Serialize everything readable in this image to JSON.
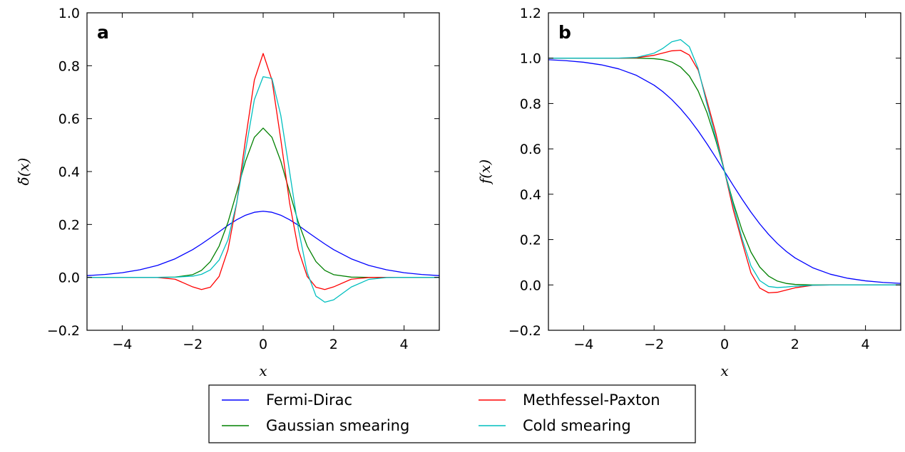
{
  "chart_data": [
    {
      "type": "line",
      "panel_letter": "a",
      "xlabel": "x",
      "ylabel": "δ̃(x)",
      "xlim": [
        -5,
        5
      ],
      "ylim": [
        -0.2,
        1.0
      ],
      "x_ticks": [
        -4,
        -2,
        0,
        2,
        4
      ],
      "y_ticks": [
        -0.2,
        0.0,
        0.2,
        0.4,
        0.6,
        0.8,
        1.0
      ],
      "x_tick_labels": [
        "−4",
        "−2",
        "0",
        "2",
        "4"
      ],
      "y_tick_labels": [
        "−0.2",
        "0.0",
        "0.2",
        "0.4",
        "0.6",
        "0.8",
        "1.0"
      ],
      "x": [
        -5,
        -4.5,
        -4,
        -3.5,
        -3,
        -2.5,
        -2,
        -1.75,
        -1.5,
        -1.25,
        -1,
        -0.75,
        -0.5,
        -0.25,
        0,
        0.25,
        0.5,
        0.75,
        1,
        1.25,
        1.5,
        1.75,
        2,
        2.5,
        3,
        3.5,
        4,
        4.5,
        5
      ],
      "series": [
        {
          "name": "Fermi-Dirac",
          "color": "#0000ff",
          "values": [
            0.0066,
            0.0109,
            0.0177,
            0.0287,
            0.0452,
            0.0701,
            0.105,
            0.1262,
            0.1491,
            0.1723,
            0.1966,
            0.2179,
            0.235,
            0.2461,
            0.25,
            0.2461,
            0.235,
            0.2179,
            0.1966,
            0.1723,
            0.1491,
            0.1262,
            0.105,
            0.0701,
            0.0452,
            0.0287,
            0.0177,
            0.0109,
            0.0066
          ]
        },
        {
          "name": "Gaussian smearing",
          "color": "#008000",
          "values": [
            0,
            0,
            0,
            0,
            0.0001,
            0.001,
            0.0103,
            0.0264,
            0.0595,
            0.1181,
            0.2076,
            0.3225,
            0.4394,
            0.5293,
            0.5642,
            0.5293,
            0.4394,
            0.3225,
            0.2076,
            0.1181,
            0.0595,
            0.0264,
            0.0103,
            0.001,
            0.0001,
            0,
            0,
            0,
            0
          ]
        },
        {
          "name": "Methfessel-Paxton",
          "color": "#ff0000",
          "values": [
            0,
            0,
            0,
            0,
            -0.0004,
            -0.0069,
            -0.036,
            -0.046,
            -0.0372,
            0.0037,
            0.1041,
            0.2821,
            0.5219,
            0.7458,
            0.8463,
            0.7458,
            0.5219,
            0.2821,
            0.1041,
            0.0037,
            -0.0372,
            -0.046,
            -0.036,
            -0.0069,
            -0.0004,
            0,
            0,
            0,
            0
          ]
        },
        {
          "name": "Cold smearing",
          "color": "#00bfbf",
          "values": [
            0,
            0,
            0,
            0,
            0,
            0.0007,
            0.0046,
            0.0116,
            0.0283,
            0.0654,
            0.1418,
            0.2826,
            0.4783,
            0.6715,
            0.7585,
            0.7517,
            0.6129,
            0.3997,
            0.1831,
            0.0182,
            -0.0704,
            -0.0937,
            -0.085,
            -0.0365,
            -0.0075,
            -0.0007,
            0,
            0,
            0
          ]
        }
      ]
    },
    {
      "type": "line",
      "panel_letter": "b",
      "xlabel": "x",
      "ylabel": "f(x)",
      "xlim": [
        -5,
        5
      ],
      "ylim": [
        -0.2,
        1.2
      ],
      "x_ticks": [
        -4,
        -2,
        0,
        2,
        4
      ],
      "y_ticks": [
        -0.2,
        0.0,
        0.2,
        0.4,
        0.6,
        0.8,
        1.0,
        1.2
      ],
      "x_tick_labels": [
        "−4",
        "−2",
        "0",
        "2",
        "4"
      ],
      "y_tick_labels": [
        "−0.2",
        "0.0",
        "0.2",
        "0.4",
        "0.6",
        "0.8",
        "1.0",
        "1.2"
      ],
      "x": [
        -5,
        -4.5,
        -4,
        -3.5,
        -3,
        -2.5,
        -2,
        -1.75,
        -1.5,
        -1.25,
        -1,
        -0.75,
        -0.5,
        -0.25,
        0,
        0.25,
        0.5,
        0.75,
        1,
        1.25,
        1.5,
        1.75,
        2,
        2.5,
        3,
        3.5,
        4,
        4.5,
        5
      ],
      "series": [
        {
          "name": "Fermi-Dirac",
          "color": "#0000ff",
          "values": [
            0.9933,
            0.989,
            0.982,
            0.9707,
            0.9526,
            0.9241,
            0.8808,
            0.852,
            0.8176,
            0.7773,
            0.7311,
            0.6792,
            0.6225,
            0.5622,
            0.5,
            0.4378,
            0.3775,
            0.3208,
            0.2689,
            0.2227,
            0.1824,
            0.148,
            0.1192,
            0.0759,
            0.0474,
            0.0293,
            0.018,
            0.011,
            0.0067
          ]
        },
        {
          "name": "Gaussian smearing",
          "color": "#008000",
          "values": [
            1,
            1,
            1,
            1,
            1,
            0.9998,
            0.9977,
            0.9934,
            0.9831,
            0.9611,
            0.9214,
            0.8555,
            0.7602,
            0.6383,
            0.5,
            0.3617,
            0.2398,
            0.1445,
            0.0786,
            0.0389,
            0.0169,
            0.0066,
            0.0023,
            0.0002,
            0,
            0,
            0,
            0,
            0
          ]
        },
        {
          "name": "Methfessel-Paxton",
          "color": "#ff0000",
          "values": [
            1,
            1,
            1,
            1,
            1.0001,
            1.0017,
            1.0127,
            1.0228,
            1.0323,
            1.0348,
            1.0137,
            0.9475,
            0.8123,
            0.6701,
            0.5,
            0.3299,
            0.1877,
            0.0525,
            -0.0137,
            -0.0348,
            -0.0323,
            -0.0228,
            -0.0127,
            -0.0017,
            -0.0001,
            0,
            0,
            0,
            0
          ]
        },
        {
          "name": "Cold smearing",
          "color": "#00bfbf",
          "values": [
            1,
            1,
            1,
            1,
            1.0002,
            1.0036,
            1.022,
            1.0434,
            1.0722,
            1.0818,
            1.0506,
            0.9544,
            0.7969,
            0.6495,
            0.5,
            0.3505,
            0.2031,
            0.0836,
            0.0189,
            -0.0067,
            -0.0115,
            -0.0091,
            -0.0055,
            -0.0012,
            -0.0002,
            0,
            0,
            0,
            0
          ]
        }
      ]
    }
  ],
  "legend": {
    "entries": [
      {
        "name": "Fermi-Dirac",
        "color": "#0000ff"
      },
      {
        "name": "Methfessel-Paxton",
        "color": "#ff0000"
      },
      {
        "name": "Gaussian smearing",
        "color": "#008000"
      },
      {
        "name": "Cold smearing",
        "color": "#00bfbf"
      }
    ]
  }
}
